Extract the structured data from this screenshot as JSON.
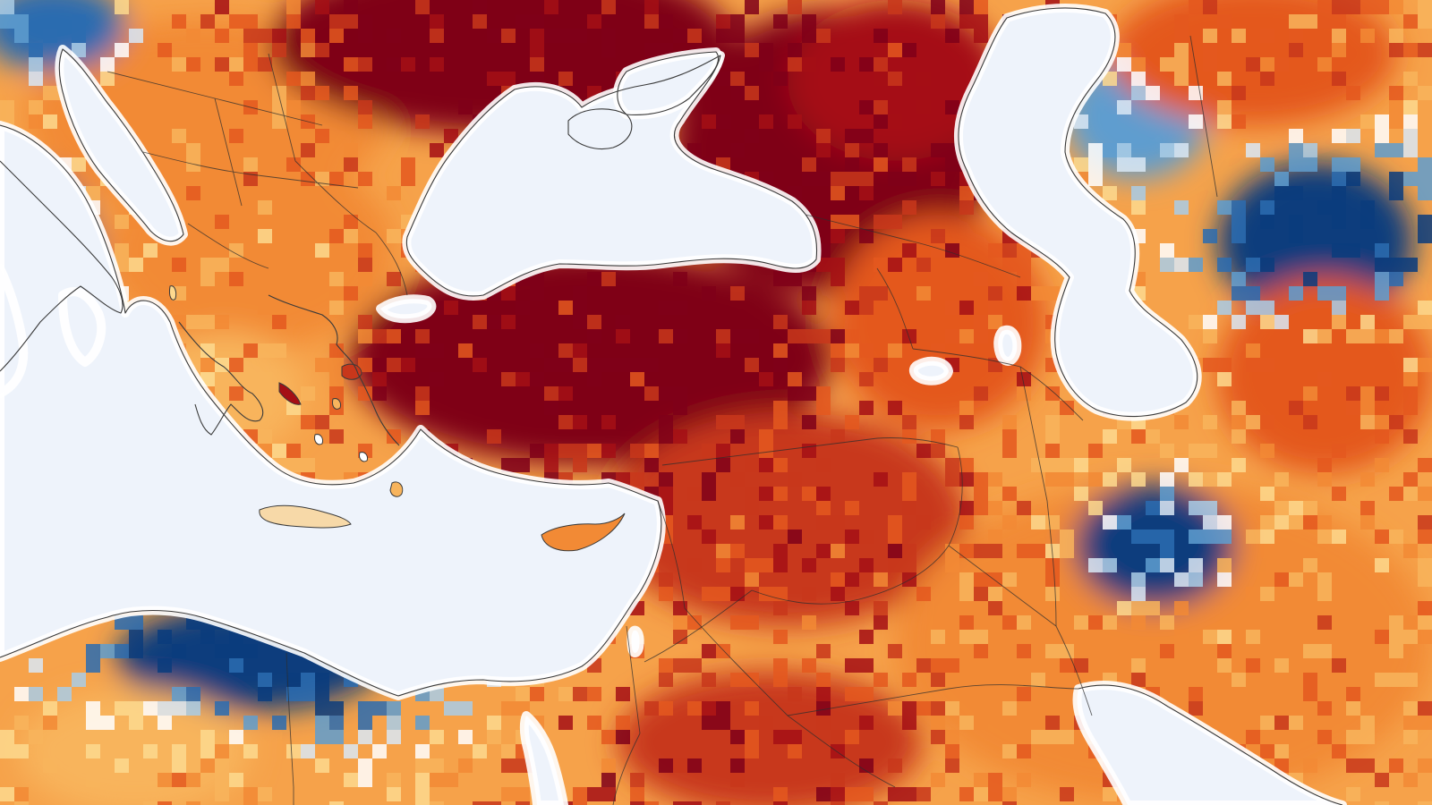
{
  "palette": {
    "dry_extreme": "#7f0019",
    "dry_severe": "#a50f15",
    "dry_strong": "#c8371b",
    "dry_moderate": "#e4581f",
    "dry_mild": "#f28a35",
    "dry_light": "#f8b45c",
    "dry_faint": "#fdd98e",
    "neutral": "#ffffff",
    "wet_faint": "#d9e8f5",
    "wet_light": "#a9cce6",
    "wet_moderate": "#5f9dcf",
    "wet_strong": "#2b6cb0",
    "wet_extreme": "#0b3c7d",
    "water": "#eef3fb",
    "coastline": "#3a3a3a"
  },
  "regions": [
    {
      "index": 0,
      "anomaly": 0.55
    },
    {
      "index": 1,
      "anomaly": 0.45
    },
    {
      "index": 2,
      "anomaly": -0.55
    },
    {
      "index": 3,
      "anomaly": -0.8
    },
    {
      "index": 4,
      "anomaly": 0.35
    },
    {
      "index": 5,
      "anomaly": 1.0
    },
    {
      "index": 6,
      "anomaly": 1.0
    },
    {
      "index": 7,
      "anomaly": 1.0
    },
    {
      "index": 8,
      "anomaly": 0.7
    },
    {
      "index": 9,
      "anomaly": 0.8
    },
    {
      "index": 10,
      "anomaly": 0.55
    },
    {
      "index": 11,
      "anomaly": -1.0
    },
    {
      "index": 12,
      "anomaly": -0.95
    },
    {
      "index": 13,
      "anomaly": -0.9
    },
    {
      "index": 14,
      "anomaly": -0.35
    },
    {
      "index": 15,
      "anomaly": 0.6
    },
    {
      "index": 16,
      "anomaly": 0.85
    },
    {
      "index": 17,
      "anomaly": 0.65
    },
    {
      "index": 18,
      "anomaly": 0.9
    },
    {
      "index": 19,
      "anomaly": 0.4
    }
  ]
}
